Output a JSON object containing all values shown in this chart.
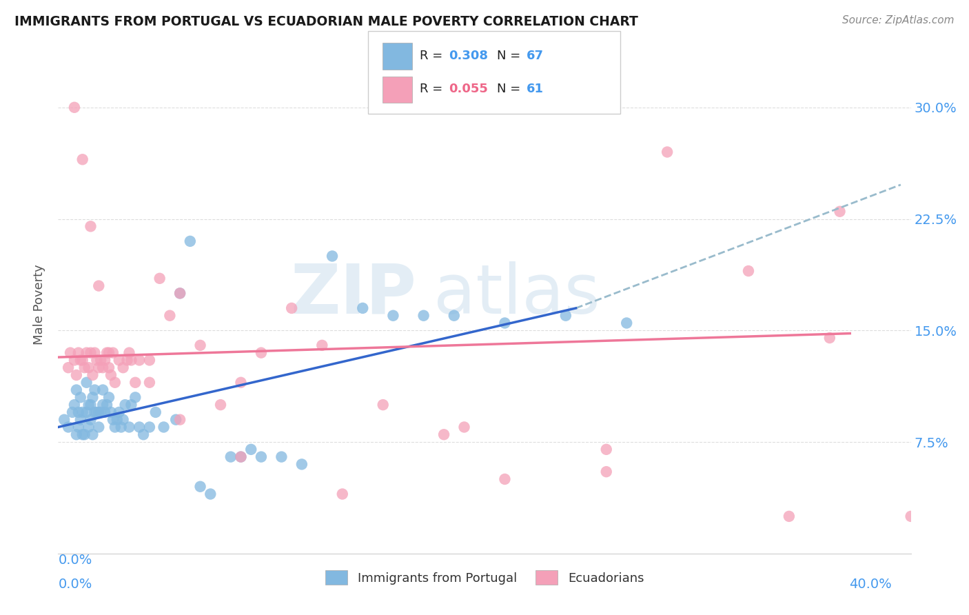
{
  "title": "IMMIGRANTS FROM PORTUGAL VS ECUADORIAN MALE POVERTY CORRELATION CHART",
  "source": "Source: ZipAtlas.com",
  "ylabel": "Male Poverty",
  "y_tick_labels": [
    "7.5%",
    "15.0%",
    "22.5%",
    "30.0%"
  ],
  "y_tick_values": [
    0.075,
    0.15,
    0.225,
    0.3
  ],
  "xlim": [
    0.0,
    0.42
  ],
  "ylim": [
    0.0,
    0.335
  ],
  "color_blue": "#82B8E0",
  "color_pink": "#F4A0B8",
  "color_blue_text": "#4499EE",
  "color_pink_text": "#EE6688",
  "color_line_blue": "#3366CC",
  "color_line_pink": "#EE7799",
  "color_dashed": "#99BBCC",
  "watermark_color": "#C8DDED",
  "blue_line_x0": 0.0,
  "blue_line_y0": 0.085,
  "blue_line_x1": 0.255,
  "blue_line_y1": 0.165,
  "pink_line_x0": 0.0,
  "pink_line_y0": 0.132,
  "pink_line_x1": 0.39,
  "pink_line_y1": 0.148,
  "dash_line_x0": 0.255,
  "dash_line_y0": 0.165,
  "dash_line_x1": 0.415,
  "dash_line_y1": 0.248,
  "blue_scatter_x": [
    0.003,
    0.005,
    0.007,
    0.008,
    0.009,
    0.009,
    0.01,
    0.01,
    0.011,
    0.011,
    0.012,
    0.012,
    0.013,
    0.014,
    0.014,
    0.015,
    0.015,
    0.016,
    0.016,
    0.017,
    0.017,
    0.018,
    0.018,
    0.019,
    0.02,
    0.02,
    0.021,
    0.022,
    0.022,
    0.023,
    0.024,
    0.025,
    0.026,
    0.027,
    0.028,
    0.029,
    0.03,
    0.031,
    0.032,
    0.033,
    0.035,
    0.036,
    0.038,
    0.04,
    0.042,
    0.045,
    0.048,
    0.052,
    0.058,
    0.06,
    0.065,
    0.07,
    0.075,
    0.085,
    0.09,
    0.095,
    0.1,
    0.11,
    0.12,
    0.135,
    0.15,
    0.165,
    0.18,
    0.195,
    0.22,
    0.25,
    0.28
  ],
  "blue_scatter_y": [
    0.09,
    0.085,
    0.095,
    0.1,
    0.08,
    0.11,
    0.085,
    0.095,
    0.09,
    0.105,
    0.08,
    0.095,
    0.08,
    0.095,
    0.115,
    0.085,
    0.1,
    0.09,
    0.1,
    0.08,
    0.105,
    0.095,
    0.11,
    0.095,
    0.085,
    0.095,
    0.095,
    0.1,
    0.11,
    0.095,
    0.1,
    0.105,
    0.095,
    0.09,
    0.085,
    0.09,
    0.095,
    0.085,
    0.09,
    0.1,
    0.085,
    0.1,
    0.105,
    0.085,
    0.08,
    0.085,
    0.095,
    0.085,
    0.09,
    0.175,
    0.21,
    0.045,
    0.04,
    0.065,
    0.065,
    0.07,
    0.065,
    0.065,
    0.06,
    0.2,
    0.165,
    0.16,
    0.16,
    0.16,
    0.155,
    0.16,
    0.155
  ],
  "pink_scatter_x": [
    0.005,
    0.006,
    0.008,
    0.009,
    0.01,
    0.011,
    0.012,
    0.013,
    0.014,
    0.015,
    0.016,
    0.017,
    0.018,
    0.019,
    0.02,
    0.021,
    0.022,
    0.023,
    0.024,
    0.025,
    0.026,
    0.027,
    0.028,
    0.03,
    0.032,
    0.034,
    0.036,
    0.038,
    0.04,
    0.045,
    0.05,
    0.055,
    0.06,
    0.07,
    0.08,
    0.09,
    0.1,
    0.115,
    0.13,
    0.16,
    0.19,
    0.22,
    0.27,
    0.3,
    0.34,
    0.385,
    0.008,
    0.012,
    0.016,
    0.02,
    0.025,
    0.035,
    0.045,
    0.06,
    0.09,
    0.14,
    0.2,
    0.27,
    0.36,
    0.42,
    0.38
  ],
  "pink_scatter_y": [
    0.125,
    0.135,
    0.13,
    0.12,
    0.135,
    0.13,
    0.13,
    0.125,
    0.135,
    0.125,
    0.135,
    0.12,
    0.135,
    0.13,
    0.125,
    0.13,
    0.125,
    0.13,
    0.135,
    0.125,
    0.12,
    0.135,
    0.115,
    0.13,
    0.125,
    0.13,
    0.13,
    0.115,
    0.13,
    0.13,
    0.185,
    0.16,
    0.175,
    0.14,
    0.1,
    0.115,
    0.135,
    0.165,
    0.14,
    0.1,
    0.08,
    0.05,
    0.07,
    0.27,
    0.19,
    0.23,
    0.3,
    0.265,
    0.22,
    0.18,
    0.135,
    0.135,
    0.115,
    0.09,
    0.065,
    0.04,
    0.085,
    0.055,
    0.025,
    0.025,
    0.145
  ]
}
